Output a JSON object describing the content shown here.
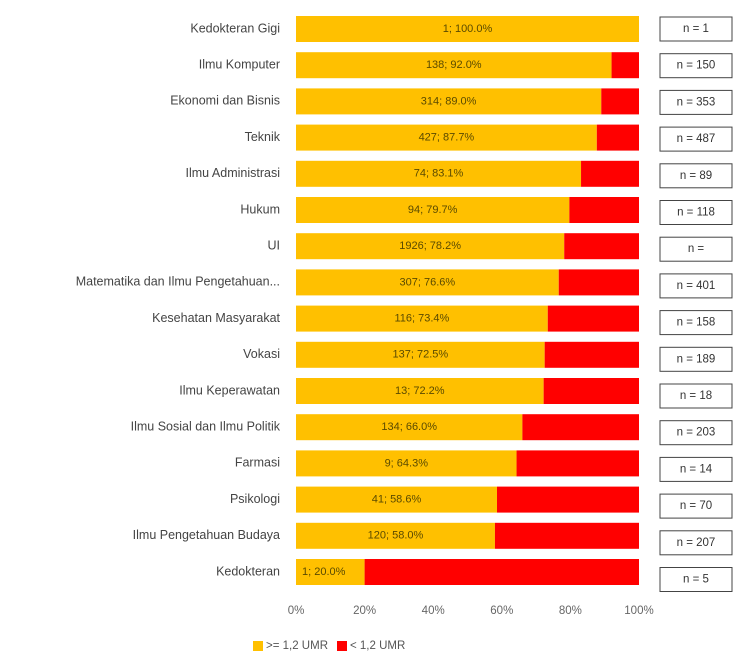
{
  "chart_data": {
    "type": "bar",
    "orientation": "horizontal",
    "stacked": true,
    "percent_scale": true,
    "categories": [
      "Kedokteran Gigi",
      "Ilmu Komputer",
      "Ekonomi dan Bisnis",
      "Teknik",
      "Ilmu Administrasi",
      "Hukum",
      "UI",
      "Matematika dan Ilmu Pengetahuan...",
      "Kesehatan Masyarakat",
      "Vokasi",
      "Ilmu Keperawatan",
      "Ilmu Sosial dan Ilmu Politik",
      "Farmasi",
      "Psikologi",
      "Ilmu Pengetahuan Budaya",
      "Kedokteran"
    ],
    "series": [
      {
        "name": ">= 1,2 UMR",
        "color": "#FFC000",
        "values": [
          100.0,
          92.0,
          89.0,
          87.7,
          83.1,
          79.7,
          78.2,
          76.6,
          73.4,
          72.5,
          72.2,
          66.0,
          64.3,
          58.6,
          58.0,
          20.0
        ],
        "labels": [
          "1; 100.0%",
          "138; 92.0%",
          "314; 89.0%",
          "427; 87.7%",
          "74; 83.1%",
          "94; 79.7%",
          "1926; 78.2%",
          "307; 76.6%",
          "116; 73.4%",
          "137; 72.5%",
          "13; 72.2%",
          "134; 66.0%",
          "9; 64.3%",
          "41; 58.6%",
          "120; 58.0%",
          "1; 20.0%"
        ]
      },
      {
        "name": "< 1,2 UMR",
        "color": "#FF0000",
        "values": [
          0.0,
          8.0,
          11.0,
          12.3,
          16.9,
          20.3,
          21.8,
          23.4,
          26.6,
          27.5,
          27.8,
          34.0,
          35.7,
          41.4,
          42.0,
          80.0
        ]
      }
    ],
    "n_labels": [
      "n = 1",
      "n = 150",
      "n = 353",
      "n = 487",
      "n = 89",
      "n = 118",
      "n =",
      "n = 401",
      "n = 158",
      "n = 189",
      "n = 18",
      "n = 203",
      "n = 14",
      "n = 70",
      "n = 207",
      "n = 5"
    ],
    "x_ticks": [
      "0%",
      "20%",
      "40%",
      "60%",
      "80%",
      "100%"
    ],
    "xlim": [
      0,
      100
    ],
    "grid": false,
    "legend_position": "bottom-left"
  }
}
